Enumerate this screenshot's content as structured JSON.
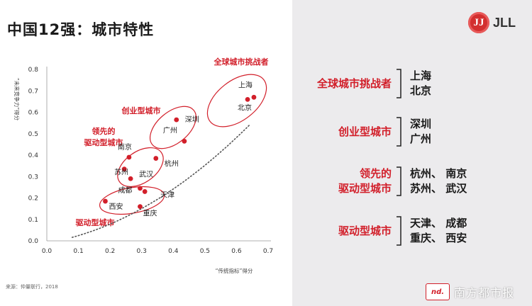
{
  "title": "中国12强：城市特性",
  "logo": {
    "mark": "JJ",
    "text": "JLL"
  },
  "source": "来源：仲量联行，2018",
  "watermark": {
    "icon": "nd.",
    "text": "南方都市报"
  },
  "colors": {
    "accent": "#d21f2a",
    "dot": "#d21f2a",
    "panel": "#ecebed"
  },
  "chart_data": {
    "type": "scatter",
    "xlabel": "“传统指标”得分",
    "ylabel": "“未来竞争力”得分",
    "xlim": [
      0.0,
      0.7
    ],
    "ylim": [
      0.0,
      0.8
    ],
    "xticks": [
      "0.0",
      "0.1",
      "0.2",
      "0.3",
      "0.4",
      "0.5",
      "0.6",
      "0.7"
    ],
    "yticks": [
      "0.0",
      "0.1",
      "0.2",
      "0.3",
      "0.4",
      "0.5",
      "0.6",
      "0.7",
      "0.8"
    ],
    "grid": false,
    "trend_line": "dotted",
    "points": [
      {
        "name": "上海",
        "x": 0.655,
        "y": 0.67
      },
      {
        "name": "北京",
        "x": 0.635,
        "y": 0.66
      },
      {
        "name": "深圳",
        "x": 0.41,
        "y": 0.565
      },
      {
        "name": "广州",
        "x": 0.435,
        "y": 0.465
      },
      {
        "name": "南京",
        "x": 0.26,
        "y": 0.39
      },
      {
        "name": "杭州",
        "x": 0.345,
        "y": 0.385
      },
      {
        "name": "苏州",
        "x": 0.245,
        "y": 0.335
      },
      {
        "name": "武汉",
        "x": 0.265,
        "y": 0.29
      },
      {
        "name": "成都",
        "x": 0.295,
        "y": 0.245
      },
      {
        "name": "天津",
        "x": 0.31,
        "y": 0.23
      },
      {
        "name": "西安",
        "x": 0.185,
        "y": 0.185
      },
      {
        "name": "重庆",
        "x": 0.295,
        "y": 0.16
      }
    ],
    "groups": [
      {
        "name": "全球城市挑战者"
      },
      {
        "name": "创业型城市"
      },
      {
        "name": "领先的驱动型城市"
      },
      {
        "name": "驱动型城市"
      }
    ]
  },
  "legend": [
    {
      "label_lines": [
        "全球城市挑战者"
      ],
      "city_lines": [
        "上海",
        "北京"
      ]
    },
    {
      "label_lines": [
        "创业型城市"
      ],
      "city_lines": [
        "深圳",
        "广州"
      ]
    },
    {
      "label_lines": [
        "领先的",
        "驱动型城市"
      ],
      "city_lines": [
        "杭州、 南京",
        "苏州、 武汉"
      ]
    },
    {
      "label_lines": [
        "驱动型城市"
      ],
      "city_lines": [
        "天津、 成都",
        "重庆、 西安"
      ]
    }
  ]
}
